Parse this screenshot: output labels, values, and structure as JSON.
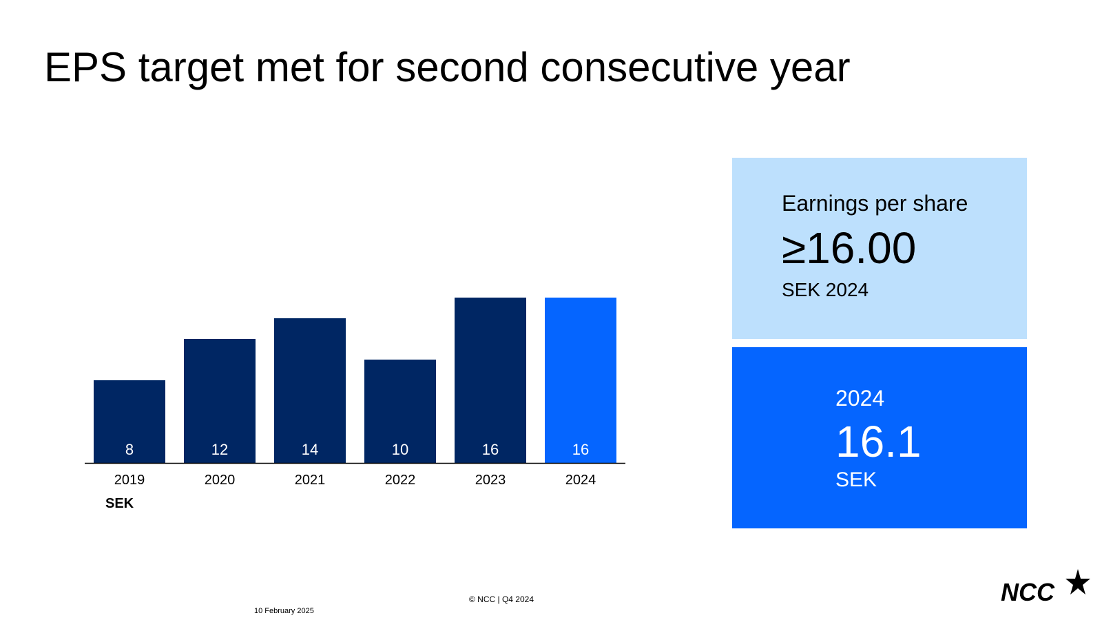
{
  "title": "EPS target met for second consecutive year",
  "chart_data": {
    "type": "bar",
    "categories": [
      "2019",
      "2020",
      "2021",
      "2022",
      "2023",
      "2024"
    ],
    "values": [
      8,
      12,
      14,
      10,
      16,
      16
    ],
    "data_labels": [
      "8",
      "12",
      "14",
      "10",
      "16",
      "16"
    ],
    "unit_label": "SEK",
    "highlighted_category": "2024",
    "colors": {
      "bar": "#002663",
      "highlight": "#0565ff",
      "label": "#ffffff",
      "axis": "#000000"
    },
    "grid": false,
    "legend": "none"
  },
  "target_box": {
    "label": "Earnings per share",
    "value": "≥16.00",
    "unit": "SEK 2024",
    "color": "#bde0fd"
  },
  "result_box": {
    "year": "2024",
    "value": "16.1",
    "unit": "SEK",
    "color": "#0565ff"
  },
  "footer": {
    "copyright": "© NCC | Q4 2024",
    "date": "10 February 2025"
  },
  "logo": {
    "text": "NCC",
    "icon": "star-icon"
  }
}
